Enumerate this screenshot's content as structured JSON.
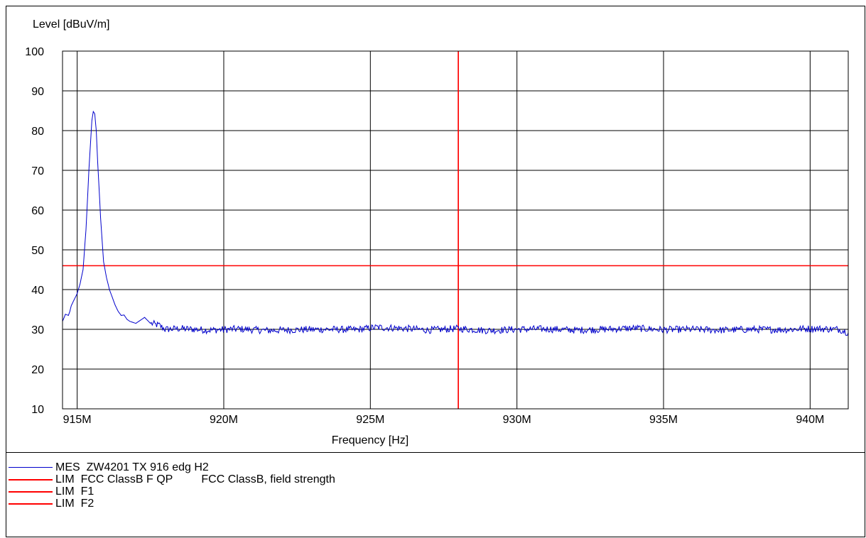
{
  "chart_data": {
    "type": "line",
    "title": "",
    "ylabel": "Level [dBuV/m]",
    "xlabel": "Frequency [Hz]",
    "xlim": [
      914.5,
      941.3
    ],
    "ylim": [
      10,
      100
    ],
    "x_ticks": [
      915,
      920,
      925,
      930,
      935,
      940
    ],
    "x_tick_labels": [
      "915M",
      "920M",
      "925M",
      "930M",
      "935M",
      "940M"
    ],
    "y_ticks": [
      10,
      20,
      30,
      40,
      50,
      60,
      70,
      80,
      90,
      100
    ],
    "y_tick_labels": [
      "10",
      "20",
      "30",
      "40",
      "50",
      "60",
      "70",
      "80",
      "90",
      "100"
    ],
    "grid": true,
    "series": [
      {
        "name": "MES  ZW4201 TX 916 edg H2",
        "color": "#0000cc",
        "points": [
          [
            914.5,
            32.0
          ],
          [
            914.6,
            33.8
          ],
          [
            914.7,
            33.5
          ],
          [
            914.75,
            34.5
          ],
          [
            914.8,
            36.0
          ],
          [
            914.9,
            37.5
          ],
          [
            915.0,
            39.0
          ],
          [
            915.1,
            41.5
          ],
          [
            915.2,
            45.0
          ],
          [
            915.3,
            55.0
          ],
          [
            915.4,
            70.0
          ],
          [
            915.5,
            82.5
          ],
          [
            915.55,
            84.8
          ],
          [
            915.6,
            84.2
          ],
          [
            915.65,
            80.0
          ],
          [
            915.7,
            72.0
          ],
          [
            915.8,
            58.0
          ],
          [
            915.9,
            47.0
          ],
          [
            916.0,
            43.0
          ],
          [
            916.1,
            40.0
          ],
          [
            916.2,
            38.0
          ],
          [
            916.3,
            36.0
          ],
          [
            916.4,
            34.5
          ],
          [
            916.5,
            33.5
          ],
          [
            916.6,
            33.6
          ],
          [
            916.7,
            32.5
          ],
          [
            916.8,
            32.0
          ],
          [
            917.0,
            31.5
          ],
          [
            917.2,
            32.5
          ],
          [
            917.3,
            33.0
          ],
          [
            917.5,
            31.5
          ],
          [
            917.8,
            31.0
          ],
          [
            918.0,
            30.0
          ],
          [
            918.5,
            30.2
          ],
          [
            919.5,
            29.8
          ],
          [
            920.5,
            30.1
          ],
          [
            921.5,
            29.7
          ],
          [
            922.5,
            29.9
          ],
          [
            923.5,
            30.0
          ],
          [
            924.5,
            29.9
          ],
          [
            925.2,
            30.5
          ],
          [
            926.0,
            30.3
          ],
          [
            927.0,
            29.8
          ],
          [
            928.0,
            30.2
          ],
          [
            929.0,
            29.7
          ],
          [
            930.0,
            30.0
          ],
          [
            931.0,
            30.1
          ],
          [
            932.0,
            29.8
          ],
          [
            933.0,
            30.0
          ],
          [
            934.0,
            30.3
          ],
          [
            935.0,
            29.9
          ],
          [
            936.0,
            30.0
          ],
          [
            937.0,
            29.8
          ],
          [
            938.0,
            30.0
          ],
          [
            939.0,
            29.9
          ],
          [
            940.0,
            30.2
          ],
          [
            941.0,
            30.0
          ],
          [
            941.3,
            29.2
          ]
        ]
      },
      {
        "name": "LIM  FCC ClassB F QP",
        "description": "FCC ClassB, field strength",
        "color": "#ff0000",
        "kind": "horizontal",
        "value": 46.0
      },
      {
        "name": "LIM  F1",
        "color": "#ff0000",
        "kind": "vertical",
        "value": 928.0
      },
      {
        "name": "LIM  F2",
        "color": "#ff0000",
        "kind": "vertical",
        "value": 928.0
      }
    ]
  }
}
